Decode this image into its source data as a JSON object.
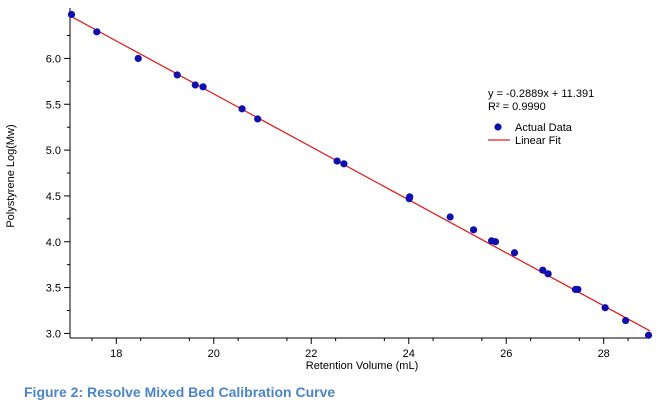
{
  "caption": "Figure 2: Resolve Mixed Bed Calibration Curve",
  "chart_data": {
    "type": "scatter",
    "xlabel": "Retention Volume (mL)",
    "ylabel": "Polystyrene Log(Mw)",
    "xlim": [
      17.05,
      28.95
    ],
    "ylim": [
      2.95,
      6.55
    ],
    "xticks": [
      "18",
      "20",
      "22",
      "24",
      "26",
      "28"
    ],
    "xtick_values": [
      18,
      20,
      22,
      24,
      26,
      28
    ],
    "yticks": [
      "3.0",
      "3.5",
      "4.0",
      "4.5",
      "5.0",
      "5.5",
      "6.0"
    ],
    "ytick_values": [
      3.0,
      3.5,
      4.0,
      4.5,
      5.0,
      5.5,
      6.0
    ],
    "grid": false,
    "legend_position": "right",
    "equation": "y = -0.2889x + 11.391",
    "r_squared": "R² = 0.9990",
    "fit": {
      "slope": -0.2889,
      "intercept": 11.391
    },
    "colors": {
      "points": "#1010b0",
      "fit_line": "#e02020"
    },
    "series": [
      {
        "name": "Actual Data",
        "x": [
          17.08,
          17.6,
          18.45,
          19.25,
          19.62,
          19.78,
          20.58,
          20.9,
          22.53,
          22.67,
          24.01,
          24.02,
          24.85,
          25.33,
          25.7,
          25.78,
          26.17,
          26.75,
          26.86,
          27.42,
          27.47,
          28.03,
          28.45,
          28.92
        ],
        "y": [
          6.48,
          6.29,
          6.0,
          5.82,
          5.71,
          5.69,
          5.45,
          5.34,
          4.88,
          4.85,
          4.47,
          4.49,
          4.27,
          4.13,
          4.01,
          4.0,
          3.88,
          3.69,
          3.65,
          3.48,
          3.48,
          3.28,
          3.14,
          2.98
        ]
      },
      {
        "name": "Linear Fit",
        "x": [
          17.05,
          28.95
        ],
        "y": [
          6.465,
          3.027
        ]
      }
    ]
  }
}
